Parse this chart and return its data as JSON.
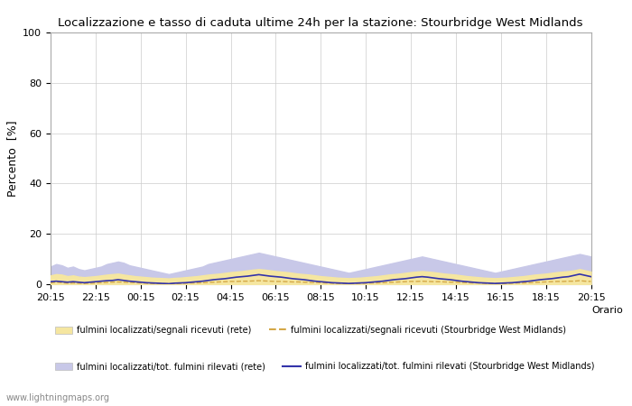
{
  "title": "Localizzazione e tasso di caduta ultime 24h per la stazione: Stourbridge West Midlands",
  "ylabel": "Percento  [%]",
  "xlabel": "Orario",
  "ylim": [
    0,
    100
  ],
  "yticks": [
    0,
    20,
    40,
    60,
    80,
    100
  ],
  "xtick_labels": [
    "20:15",
    "22:15",
    "00:15",
    "02:15",
    "04:15",
    "06:15",
    "08:15",
    "10:15",
    "12:15",
    "14:15",
    "16:15",
    "18:15",
    "20:15"
  ],
  "background_color": "#ffffff",
  "plot_bg_color": "#ffffff",
  "grid_color": "#cccccc",
  "fill_rete_color": "#f5e6a0",
  "fill_station_color": "#c8c8e8",
  "line_rete_color": "#d4a847",
  "line_station_color": "#3333aa",
  "legend_entries": [
    "fulmini localizzati/segnali ricevuti (rete)",
    "fulmini localizzati/segnali ricevuti (Stourbridge West Midlands)",
    "fulmini localizzati/tot. fulmini rilevati (rete)",
    "fulmini localizzati/tot. fulmini rilevati (Stourbridge West Midlands)"
  ],
  "watermark": "www.lightningmaps.org",
  "n_points": 97,
  "fill_rete_values": [
    3.5,
    4.0,
    3.8,
    3.2,
    3.5,
    3.0,
    2.8,
    3.0,
    3.2,
    3.5,
    3.8,
    4.0,
    4.2,
    3.8,
    3.5,
    3.2,
    3.0,
    2.8,
    2.6,
    2.5,
    2.4,
    2.3,
    2.5,
    2.6,
    2.8,
    3.0,
    3.2,
    3.5,
    3.8,
    4.0,
    4.2,
    4.5,
    4.8,
    5.0,
    5.2,
    5.5,
    5.8,
    6.0,
    5.8,
    5.5,
    5.2,
    5.0,
    4.8,
    4.5,
    4.2,
    4.0,
    3.8,
    3.5,
    3.2,
    3.0,
    2.8,
    2.6,
    2.5,
    2.4,
    2.5,
    2.6,
    2.8,
    3.0,
    3.2,
    3.5,
    3.8,
    4.0,
    4.2,
    4.5,
    4.8,
    5.0,
    5.2,
    5.0,
    4.8,
    4.5,
    4.2,
    4.0,
    3.8,
    3.5,
    3.2,
    3.0,
    2.8,
    2.6,
    2.5,
    2.4,
    2.5,
    2.6,
    2.8,
    3.0,
    3.2,
    3.5,
    3.8,
    4.0,
    4.2,
    4.5,
    4.8,
    5.0,
    5.2,
    5.5,
    6.0,
    5.5,
    5.0
  ],
  "fill_station_values": [
    7,
    8,
    7.5,
    6.5,
    7,
    6,
    5.5,
    6,
    6.5,
    7,
    8,
    8.5,
    9,
    8.5,
    7.5,
    7,
    6.5,
    6,
    5.5,
    5,
    4.5,
    4,
    4.5,
    5,
    5.5,
    6,
    6.5,
    7,
    8,
    8.5,
    9,
    9.5,
    10,
    10.5,
    11,
    11.5,
    12,
    12.5,
    12,
    11.5,
    11,
    10.5,
    10,
    9.5,
    9,
    8.5,
    8,
    7.5,
    7,
    6.5,
    6,
    5.5,
    5,
    4.5,
    5,
    5.5,
    6,
    6.5,
    7,
    7.5,
    8,
    8.5,
    9,
    9.5,
    10,
    10.5,
    11,
    10.5,
    10,
    9.5,
    9,
    8.5,
    8,
    7.5,
    7,
    6.5,
    6,
    5.5,
    5,
    4.5,
    5,
    5.5,
    6,
    6.5,
    7,
    7.5,
    8,
    8.5,
    9,
    9.5,
    10,
    10.5,
    11,
    11.5,
    12,
    11.5,
    11
  ],
  "line_rete_values": [
    0.5,
    0.8,
    0.6,
    0.4,
    0.5,
    0.4,
    0.3,
    0.4,
    0.5,
    0.6,
    0.7,
    0.8,
    0.9,
    0.8,
    0.7,
    0.6,
    0.5,
    0.4,
    0.3,
    0.3,
    0.2,
    0.2,
    0.3,
    0.3,
    0.4,
    0.5,
    0.5,
    0.6,
    0.7,
    0.8,
    0.9,
    1.0,
    1.1,
    1.1,
    1.2,
    1.2,
    1.3,
    1.4,
    1.3,
    1.2,
    1.1,
    1.1,
    1.0,
    0.9,
    0.9,
    0.8,
    0.7,
    0.7,
    0.6,
    0.5,
    0.4,
    0.3,
    0.3,
    0.2,
    0.3,
    0.3,
    0.4,
    0.5,
    0.5,
    0.6,
    0.7,
    0.8,
    0.9,
    1.0,
    1.1,
    1.1,
    1.2,
    1.1,
    1.0,
    1.0,
    0.9,
    0.8,
    0.8,
    0.7,
    0.6,
    0.5,
    0.5,
    0.4,
    0.3,
    0.3,
    0.3,
    0.3,
    0.4,
    0.5,
    0.5,
    0.6,
    0.7,
    0.8,
    0.9,
    1.0,
    1.1,
    1.1,
    1.2,
    1.2,
    1.4,
    1.2,
    1.1
  ],
  "line_station_values": [
    1,
    1.2,
    1.0,
    0.8,
    1.0,
    0.8,
    0.6,
    0.8,
    1.0,
    1.2,
    1.4,
    1.5,
    1.8,
    1.5,
    1.2,
    1.0,
    0.8,
    0.6,
    0.5,
    0.4,
    0.3,
    0.2,
    0.4,
    0.5,
    0.6,
    0.8,
    1.0,
    1.2,
    1.5,
    1.8,
    2.0,
    2.2,
    2.5,
    2.8,
    3.0,
    3.2,
    3.5,
    3.8,
    3.5,
    3.2,
    3.0,
    2.8,
    2.5,
    2.2,
    2.0,
    1.8,
    1.5,
    1.2,
    1.0,
    0.8,
    0.6,
    0.5,
    0.4,
    0.3,
    0.4,
    0.5,
    0.6,
    0.8,
    1.0,
    1.2,
    1.5,
    1.8,
    2.0,
    2.2,
    2.5,
    2.8,
    3.0,
    2.8,
    2.5,
    2.2,
    2.0,
    1.8,
    1.5,
    1.2,
    1.0,
    0.8,
    0.6,
    0.5,
    0.4,
    0.3,
    0.4,
    0.5,
    0.6,
    0.8,
    1.0,
    1.2,
    1.5,
    1.8,
    2.0,
    2.2,
    2.5,
    2.8,
    3.0,
    3.5,
    4.0,
    3.5,
    3.0
  ]
}
